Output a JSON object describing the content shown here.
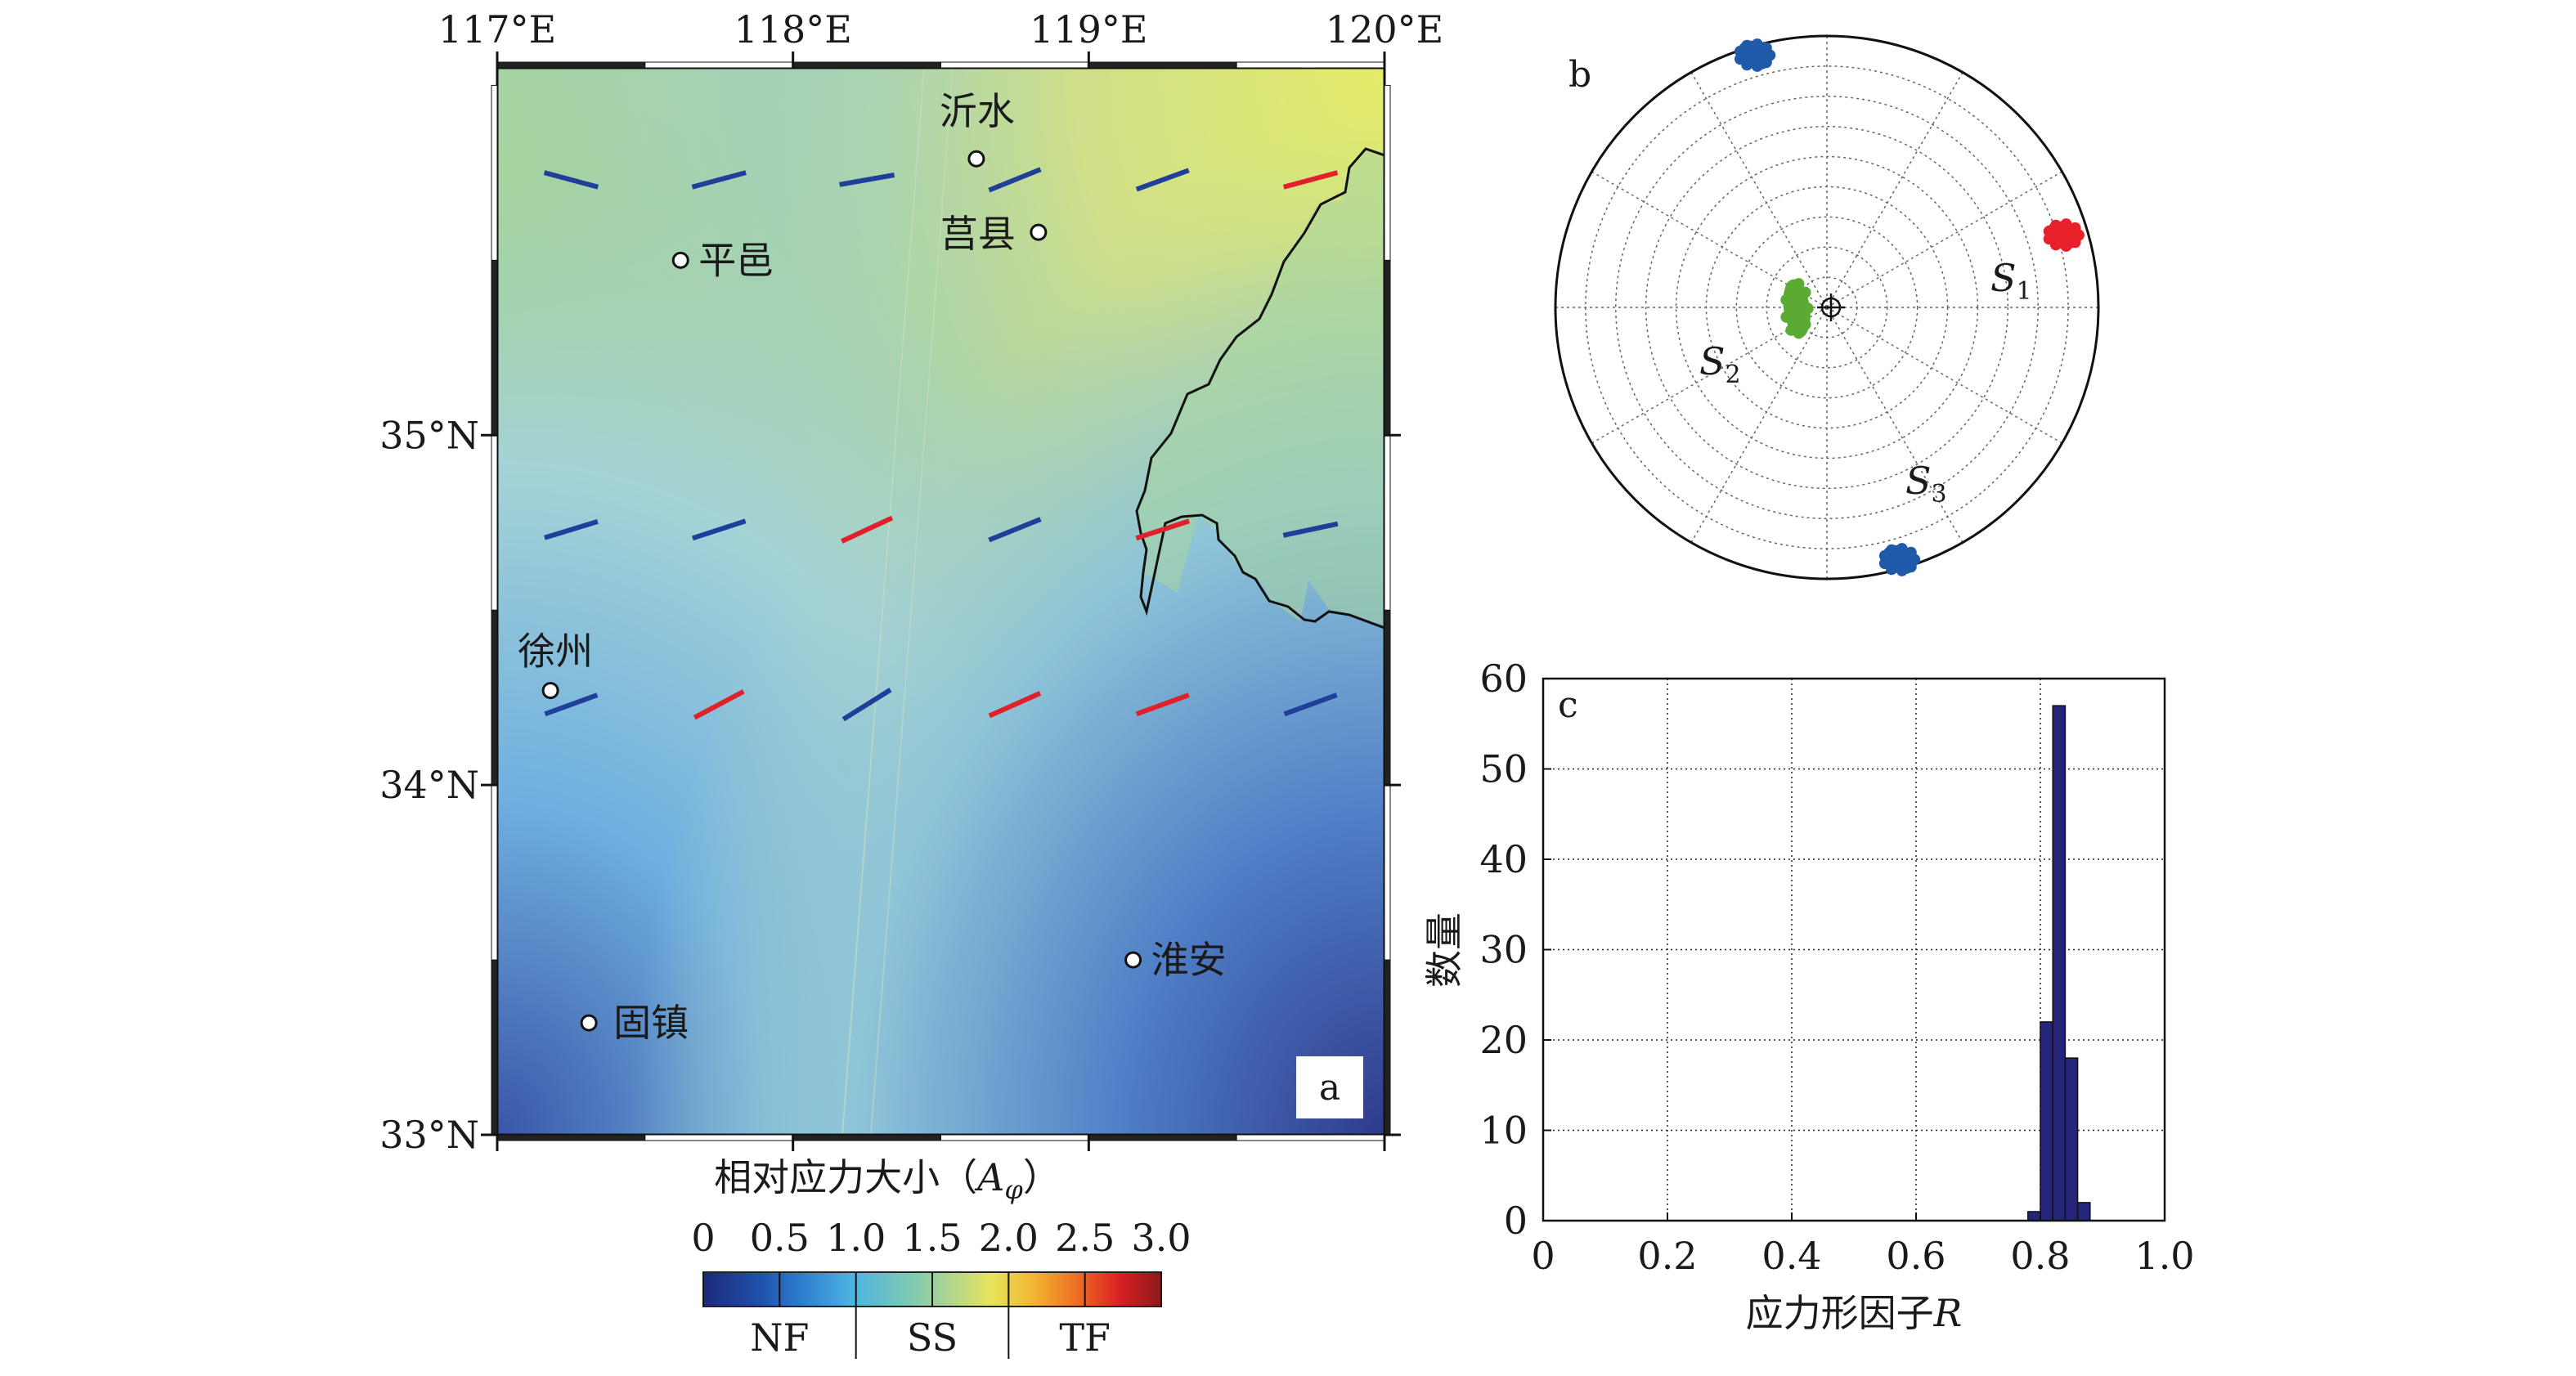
{
  "map_panel": {
    "label": "a",
    "lon_ticks": [
      "117°E",
      "118°E",
      "119°E",
      "120°E"
    ],
    "lat_ticks": [
      "35°N",
      "34°N",
      "33°N"
    ],
    "lon_range": [
      117,
      120
    ],
    "lat_range": [
      33,
      36.05
    ],
    "cities": [
      {
        "name": "沂水",
        "lon": 118.62,
        "lat": 35.79
      },
      {
        "name": "莒县",
        "lon": 118.83,
        "lat": 35.58
      },
      {
        "name": "平邑",
        "lon": 117.62,
        "lat": 35.5
      },
      {
        "name": "徐州",
        "lon": 117.18,
        "lat": 34.27
      },
      {
        "name": "淮安",
        "lon": 119.15,
        "lat": 33.5
      },
      {
        "name": "固镇",
        "lon": 117.31,
        "lat": 33.32
      }
    ],
    "stress_bars": [
      {
        "lon": 117.25,
        "lat": 35.73,
        "az": 105,
        "regime": "NF"
      },
      {
        "lon": 117.75,
        "lat": 35.73,
        "az": 75,
        "regime": "NF"
      },
      {
        "lon": 118.25,
        "lat": 35.73,
        "az": 80,
        "regime": "NF"
      },
      {
        "lon": 118.75,
        "lat": 35.73,
        "az": 68,
        "regime": "NF"
      },
      {
        "lon": 119.25,
        "lat": 35.73,
        "az": 70,
        "regime": "NF"
      },
      {
        "lon": 119.75,
        "lat": 35.73,
        "az": 75,
        "regime": "TF"
      },
      {
        "lon": 117.25,
        "lat": 34.73,
        "az": 73,
        "regime": "NF"
      },
      {
        "lon": 117.75,
        "lat": 34.73,
        "az": 72,
        "regime": "NF"
      },
      {
        "lon": 118.25,
        "lat": 34.73,
        "az": 65,
        "regime": "TF"
      },
      {
        "lon": 118.75,
        "lat": 34.73,
        "az": 68,
        "regime": "NF"
      },
      {
        "lon": 119.25,
        "lat": 34.73,
        "az": 72,
        "regime": "TF"
      },
      {
        "lon": 119.75,
        "lat": 34.73,
        "az": 78,
        "regime": "NF"
      },
      {
        "lon": 117.25,
        "lat": 34.23,
        "az": 70,
        "regime": "NF"
      },
      {
        "lon": 117.75,
        "lat": 34.23,
        "az": 62,
        "regime": "TF"
      },
      {
        "lon": 118.25,
        "lat": 34.23,
        "az": 58,
        "regime": "NF"
      },
      {
        "lon": 118.75,
        "lat": 34.23,
        "az": 66,
        "regime": "TF"
      },
      {
        "lon": 119.25,
        "lat": 34.23,
        "az": 70,
        "regime": "TF"
      },
      {
        "lon": 119.75,
        "lat": 34.23,
        "az": 70,
        "regime": "NF"
      }
    ]
  },
  "colorbar": {
    "title_main": "相对应力大小（",
    "title_var": "A",
    "title_sub": "φ",
    "title_close": "）",
    "ticks": [
      "0",
      "0.5",
      "1.0",
      "1.5",
      "2.0",
      "2.5",
      "3.0"
    ],
    "regimes": [
      "NF",
      "SS",
      "TF"
    ]
  },
  "stereonet": {
    "label": "b",
    "axis_labels": [
      {
        "name": "S",
        "sub": "1"
      },
      {
        "name": "S",
        "sub": "2"
      },
      {
        "name": "S",
        "sub": "3"
      }
    ],
    "clusters": [
      {
        "name": "S1",
        "trend": 73,
        "plunge": 8,
        "color": "#e8202a"
      },
      {
        "name": "S2",
        "trend": 268,
        "plunge": 80,
        "color": "#5aaa34"
      },
      {
        "name": "S3",
        "trend": 164,
        "plunge": 3,
        "color": "#1f5aa8"
      },
      {
        "name": "S3b",
        "trend": 344,
        "plunge": 3,
        "color": "#1f5aa8"
      }
    ]
  },
  "chart_data": {
    "type": "bar",
    "label": "c",
    "xlabel": "应力形因子",
    "xlabel_var": "R",
    "ylabel": "数量",
    "xlim": [
      0,
      1.0
    ],
    "ylim": [
      0,
      60
    ],
    "xticks": [
      "0",
      "0.2",
      "0.4",
      "0.6",
      "0.8",
      "1.0"
    ],
    "yticks": [
      "0",
      "10",
      "20",
      "30",
      "40",
      "50",
      "60"
    ],
    "grid": true,
    "bin_width": 0.02,
    "bins": [
      {
        "x": 0.79,
        "count": 1
      },
      {
        "x": 0.81,
        "count": 22
      },
      {
        "x": 0.83,
        "count": 57
      },
      {
        "x": 0.85,
        "count": 18
      },
      {
        "x": 0.87,
        "count": 2
      }
    ],
    "bar_color": "#25257a"
  }
}
